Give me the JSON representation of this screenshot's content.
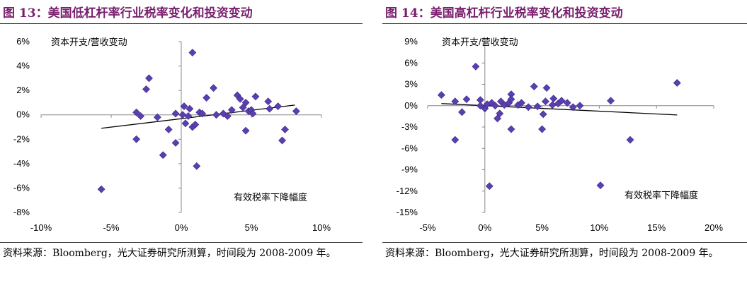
{
  "charts": [
    {
      "title": "图 13：美国低杠杆率行业税率变化和投资变动",
      "source": "资料来源：Bloomberg，光大证券研究所测算，时间段为 2008-2009 年。"
    },
    {
      "title": "图 14：美国高杠杆行业税率变化和投资变动",
      "source": "资料来源：Bloomberg，光大证券研究所测算，时间段为 2008-2009 年。"
    }
  ],
  "chart_data": [
    {
      "type": "scatter",
      "title": "图 13：美国低杠杆率行业税率变化和投资变动",
      "xlabel": "有效税率下降幅度",
      "ylabel": "资本开支/营收变动",
      "xlim": [
        -10,
        10
      ],
      "ylim": [
        -8,
        6
      ],
      "x_ticks": [
        -10,
        -5,
        0,
        5,
        10
      ],
      "y_ticks": [
        -8,
        -6,
        -4,
        -2,
        0,
        2,
        4,
        6
      ],
      "x_tick_labels": [
        "-10%",
        "-5%",
        "0%",
        "5%",
        "10%"
      ],
      "y_tick_labels": [
        "-8%",
        "-6%",
        "-4%",
        "-2%",
        "0%",
        "2%",
        "4%",
        "6%"
      ],
      "marker_color": "#5a3fb0",
      "grid": false,
      "trendline": {
        "x": [
          -5.7,
          8.1
        ],
        "y": [
          -1.1,
          0.8
        ]
      },
      "points": [
        {
          "x": -5.7,
          "y": -6.1
        },
        {
          "x": -3.2,
          "y": 0.2
        },
        {
          "x": -3.2,
          "y": -2.0
        },
        {
          "x": -2.9,
          "y": -0.1
        },
        {
          "x": -2.5,
          "y": 2.1
        },
        {
          "x": -2.3,
          "y": 3.0
        },
        {
          "x": -1.7,
          "y": -0.2
        },
        {
          "x": -1.3,
          "y": -3.3
        },
        {
          "x": -0.9,
          "y": -1.2
        },
        {
          "x": -0.4,
          "y": 0.1
        },
        {
          "x": -0.4,
          "y": -2.3
        },
        {
          "x": 0.1,
          "y": 0.0
        },
        {
          "x": 0.2,
          "y": 0.7
        },
        {
          "x": 0.3,
          "y": -0.7
        },
        {
          "x": 0.5,
          "y": -0.1
        },
        {
          "x": 0.6,
          "y": 0.5
        },
        {
          "x": 0.8,
          "y": -1.0
        },
        {
          "x": 0.8,
          "y": 5.1
        },
        {
          "x": 1.0,
          "y": -0.8
        },
        {
          "x": 1.1,
          "y": -4.2
        },
        {
          "x": 1.3,
          "y": 0.2
        },
        {
          "x": 1.5,
          "y": 0.1
        },
        {
          "x": 1.8,
          "y": 1.4
        },
        {
          "x": 2.3,
          "y": 2.2
        },
        {
          "x": 2.5,
          "y": 0.0
        },
        {
          "x": 3.0,
          "y": 0.1
        },
        {
          "x": 3.3,
          "y": -0.1
        },
        {
          "x": 3.6,
          "y": 0.4
        },
        {
          "x": 4.0,
          "y": 1.6
        },
        {
          "x": 4.2,
          "y": 1.3
        },
        {
          "x": 4.4,
          "y": 0.6
        },
        {
          "x": 4.6,
          "y": 1.0
        },
        {
          "x": 4.6,
          "y": -1.3
        },
        {
          "x": 4.8,
          "y": 0.3
        },
        {
          "x": 5.0,
          "y": 0.4
        },
        {
          "x": 5.1,
          "y": 0.1
        },
        {
          "x": 5.3,
          "y": 1.5
        },
        {
          "x": 6.2,
          "y": 1.1
        },
        {
          "x": 6.3,
          "y": 0.5
        },
        {
          "x": 6.9,
          "y": 0.7
        },
        {
          "x": 7.2,
          "y": -2.1
        },
        {
          "x": 7.4,
          "y": -1.2
        },
        {
          "x": 8.2,
          "y": 0.3
        }
      ]
    },
    {
      "type": "scatter",
      "title": "图 14：美国高杠杆行业税率变化和投资变动",
      "xlabel": "有效税率下降幅度",
      "ylabel": "资本开支/营收变动",
      "xlim": [
        -5,
        20
      ],
      "ylim": [
        -15,
        9
      ],
      "x_ticks": [
        -5,
        0,
        5,
        10,
        15,
        20
      ],
      "y_ticks": [
        -15,
        -12,
        -9,
        -6,
        -3,
        0,
        3,
        6,
        9
      ],
      "x_tick_labels": [
        "-5%",
        "0%",
        "5%",
        "10%",
        "15%",
        "20%"
      ],
      "y_tick_labels": [
        "-15%",
        "-12%",
        "-9%",
        "-6%",
        "-3%",
        "0%",
        "3%",
        "6%",
        "9%"
      ],
      "marker_color": "#5a3fb0",
      "grid": false,
      "trendline": {
        "x": [
          -3.8,
          16.8
        ],
        "y": [
          0.3,
          -1.3
        ]
      },
      "points": [
        {
          "x": -3.8,
          "y": 1.5
        },
        {
          "x": -2.6,
          "y": 0.6
        },
        {
          "x": -2.6,
          "y": -4.8
        },
        {
          "x": -2.0,
          "y": -0.9
        },
        {
          "x": -1.6,
          "y": 0.9
        },
        {
          "x": -0.8,
          "y": 5.5
        },
        {
          "x": -0.4,
          "y": 0.8
        },
        {
          "x": -0.4,
          "y": 0.0
        },
        {
          "x": 0.0,
          "y": -0.4
        },
        {
          "x": 0.2,
          "y": 0.2
        },
        {
          "x": 0.4,
          "y": -11.3
        },
        {
          "x": 0.6,
          "y": 0.4
        },
        {
          "x": 0.9,
          "y": 0.0
        },
        {
          "x": 1.1,
          "y": -1.8
        },
        {
          "x": 1.3,
          "y": -1.1
        },
        {
          "x": 1.4,
          "y": 0.6
        },
        {
          "x": 1.7,
          "y": 0.1
        },
        {
          "x": 2.1,
          "y": 0.4
        },
        {
          "x": 2.3,
          "y": 1.6
        },
        {
          "x": 2.3,
          "y": 0.9
        },
        {
          "x": 2.3,
          "y": -3.3
        },
        {
          "x": 2.9,
          "y": 0.1
        },
        {
          "x": 3.2,
          "y": 0.4
        },
        {
          "x": 3.8,
          "y": -0.2
        },
        {
          "x": 4.3,
          "y": 2.7
        },
        {
          "x": 4.6,
          "y": -0.1
        },
        {
          "x": 5.0,
          "y": -3.3
        },
        {
          "x": 5.1,
          "y": -1.2
        },
        {
          "x": 5.3,
          "y": 0.6
        },
        {
          "x": 5.4,
          "y": 2.5
        },
        {
          "x": 5.9,
          "y": 0.1
        },
        {
          "x": 6.0,
          "y": 1.0
        },
        {
          "x": 6.4,
          "y": 0.3
        },
        {
          "x": 6.7,
          "y": 0.7
        },
        {
          "x": 7.2,
          "y": 0.4
        },
        {
          "x": 7.7,
          "y": -0.2
        },
        {
          "x": 8.3,
          "y": 0.0
        },
        {
          "x": 10.1,
          "y": -11.2
        },
        {
          "x": 11.0,
          "y": 0.7
        },
        {
          "x": 12.7,
          "y": -4.8
        },
        {
          "x": 16.8,
          "y": 3.2
        }
      ]
    }
  ]
}
